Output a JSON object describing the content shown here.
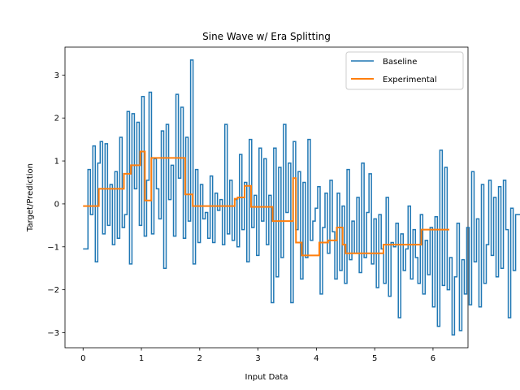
{
  "chart_data": {
    "type": "line",
    "title": "Sine Wave w/ Era Splitting",
    "xlabel": "Input Data",
    "ylabel": "Target/Prediction",
    "xlim": [
      -0.31,
      6.6
    ],
    "ylim": [
      -3.35,
      3.65
    ],
    "x_ticks": [
      0,
      1,
      2,
      3,
      4,
      5,
      6
    ],
    "y_ticks": [
      -3,
      -2,
      -1,
      0,
      1,
      2,
      3
    ],
    "grid": false,
    "legend_position": "top-right",
    "series": [
      {
        "name": "Baseline",
        "color": "#1f77b4",
        "drawstyle": "steps-post",
        "x_start": 0.0,
        "x_step": 0.0419,
        "values": [
          -1.05,
          -1.05,
          0.8,
          -0.25,
          1.35,
          -1.35,
          0.95,
          1.45,
          -0.7,
          1.4,
          -0.5,
          0.45,
          -0.95,
          0.75,
          -0.8,
          1.55,
          -0.55,
          -0.25,
          2.15,
          -1.4,
          2.1,
          0.35,
          1.9,
          -0.5,
          2.5,
          -0.75,
          0.55,
          2.6,
          -0.7,
          1.05,
          0.35,
          -0.35,
          1.7,
          -1.5,
          1.85,
          0.1,
          0.9,
          -0.75,
          2.55,
          0.6,
          2.25,
          -0.8,
          1.55,
          -0.4,
          3.35,
          -1.4,
          0.8,
          -0.9,
          0.45,
          -0.35,
          -0.2,
          -0.8,
          0.65,
          -0.9,
          0.25,
          -0.15,
          0.1,
          -0.95,
          1.85,
          -0.7,
          0.55,
          -0.85,
          0.1,
          -1.0,
          1.15,
          -0.6,
          0.5,
          -1.35,
          1.5,
          -0.55,
          0.2,
          -1.2,
          1.3,
          -0.4,
          1.05,
          -0.95,
          0.2,
          -2.3,
          1.3,
          -1.7,
          0.85,
          -1.25,
          1.85,
          -0.2,
          0.95,
          -2.3,
          1.45,
          -0.6,
          0.75,
          -1.75,
          0.5,
          -1.25,
          1.5,
          -0.85,
          -0.4,
          -0.1,
          0.4,
          -2.1,
          -0.55,
          0.25,
          -1.15,
          0.55,
          -0.65,
          -1.75,
          0.25,
          -1.55,
          -0.05,
          -1.85,
          0.8,
          -1.3,
          -0.4,
          -1.15,
          0.15,
          -1.6,
          0.95,
          -1.25,
          -0.2,
          0.7,
          -1.4,
          -0.35,
          -1.95,
          -0.25,
          -1.05,
          -1.85,
          0.15,
          -2.15,
          -0.9,
          -1.0,
          -0.45,
          -2.65,
          -0.7,
          -1.55,
          -1.05,
          -0.05,
          -1.75,
          -0.6,
          -1.25,
          -1.85,
          -0.25,
          -2.1,
          -0.85,
          -1.65,
          -0.55,
          -2.4,
          -0.3,
          -2.85,
          1.25,
          -1.9,
          0.85,
          -2.0,
          -1.25,
          -3.05,
          -1.7,
          -0.45,
          -2.95,
          -1.3,
          -2.1,
          -0.55,
          -2.35,
          0.75,
          -1.35,
          -0.35,
          -2.4,
          0.45,
          -1.85,
          -0.95,
          0.55,
          -1.2,
          0.15,
          -1.7,
          0.4,
          -1.5,
          0.55,
          -0.6,
          -2.65,
          -0.1,
          -1.55,
          -0.25,
          -0.25,
          -0.25
        ]
      },
      {
        "name": "Experimental",
        "color": "#ff7f0e",
        "drawstyle": "steps-post",
        "steps": [
          [
            0.0,
            -0.05
          ],
          [
            0.27,
            0.35
          ],
          [
            0.7,
            0.7
          ],
          [
            0.82,
            0.9
          ],
          [
            0.98,
            1.22
          ],
          [
            1.06,
            0.08
          ],
          [
            1.17,
            1.07
          ],
          [
            1.75,
            0.22
          ],
          [
            1.88,
            -0.05
          ],
          [
            2.6,
            0.12
          ],
          [
            2.65,
            0.15
          ],
          [
            2.77,
            0.42
          ],
          [
            2.88,
            -0.07
          ],
          [
            3.25,
            -0.4
          ],
          [
            3.45,
            -0.4
          ],
          [
            3.6,
            0.6
          ],
          [
            3.65,
            -0.9
          ],
          [
            3.75,
            -1.2
          ],
          [
            4.05,
            -0.9
          ],
          [
            4.2,
            -0.85
          ],
          [
            4.35,
            -0.55
          ],
          [
            4.45,
            -0.95
          ],
          [
            4.5,
            -1.15
          ],
          [
            5.15,
            -0.95
          ],
          [
            5.8,
            -0.6
          ],
          [
            6.28,
            -0.6
          ]
        ]
      }
    ]
  }
}
